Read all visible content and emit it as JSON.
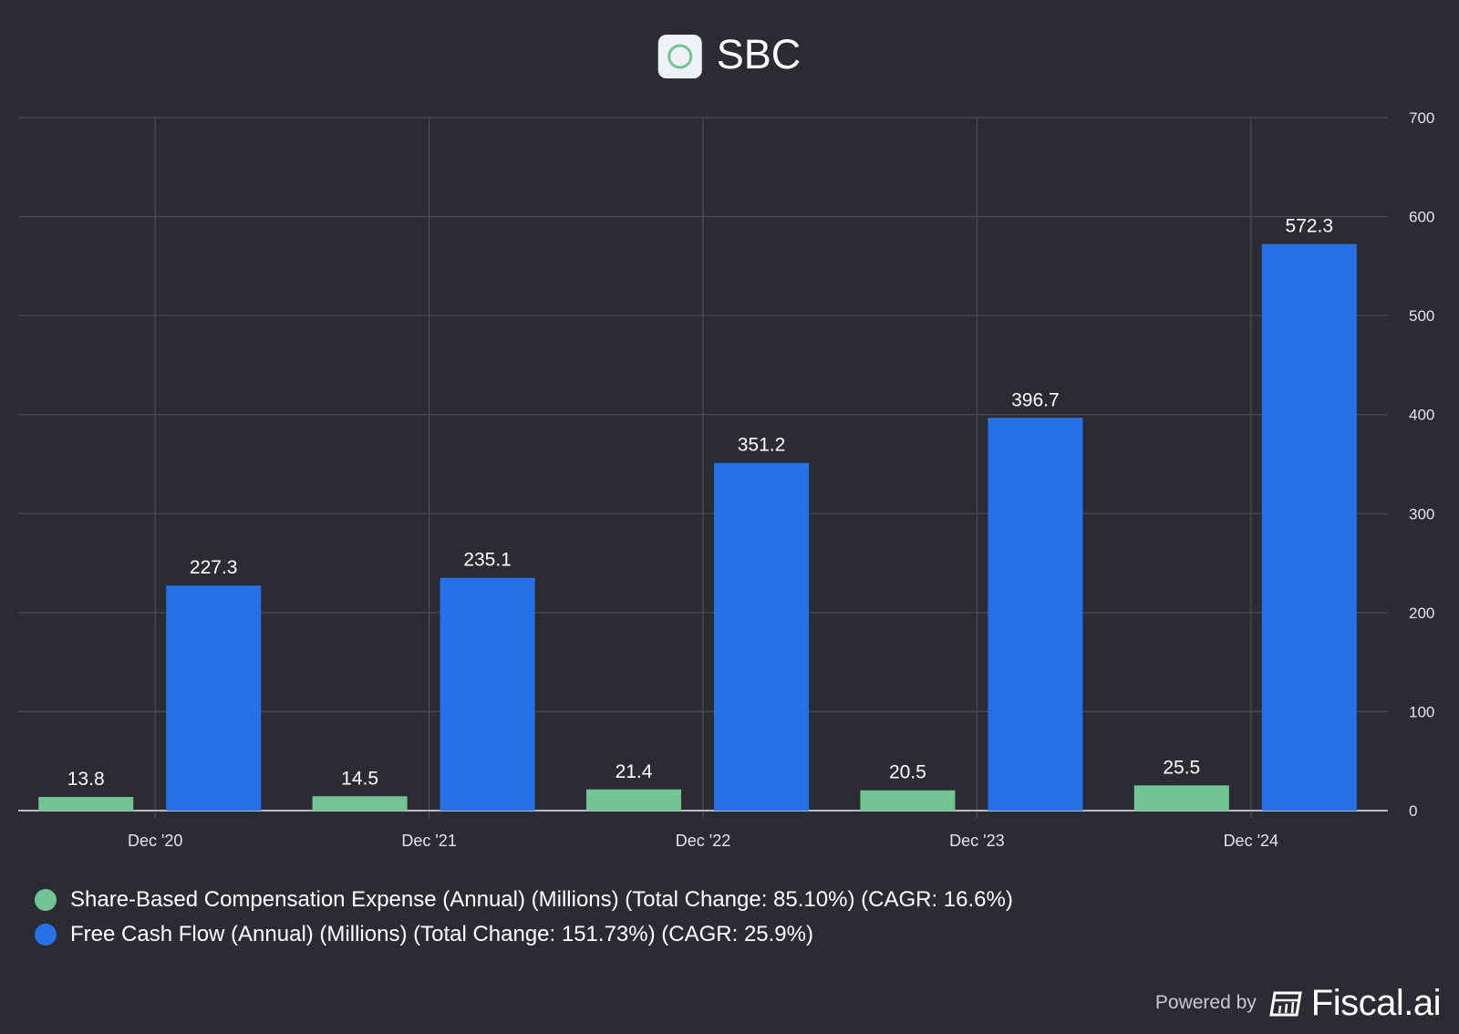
{
  "chart_data": {
    "type": "bar",
    "title": "SBC",
    "categories": [
      "Dec '20",
      "Dec '21",
      "Dec '22",
      "Dec '23",
      "Dec '24"
    ],
    "series": [
      {
        "name": "Share-Based Compensation Expense (Annual) (Millions) (Total Change: 85.10%) (CAGR: 16.6%)",
        "color": "#72c493",
        "values": [
          13.8,
          14.5,
          21.4,
          20.5,
          25.5
        ],
        "labels": [
          "13.8",
          "14.5",
          "21.4",
          "20.5",
          "25.5"
        ]
      },
      {
        "name": "Free Cash Flow (Annual) (Millions) (Total Change: 151.73%) (CAGR: 25.9%)",
        "color": "#2671e8",
        "values": [
          227.3,
          235.1,
          351.2,
          396.7,
          572.3
        ],
        "labels": [
          "227.3",
          "235.1",
          "351.2",
          "396.7",
          "572.3"
        ]
      }
    ],
    "ylim": [
      0,
      700
    ],
    "yticks": [
      "0",
      "100",
      "200",
      "300",
      "400",
      "500",
      "600",
      "700"
    ],
    "yaxis_position": "right",
    "grid": true,
    "legend_position": "bottom-left"
  },
  "footer": {
    "powered_by": "Powered by",
    "brand": "Fiscal.ai"
  },
  "icons": {
    "title_logo": "circle-logo-icon",
    "brand_logo": "fiscal-logo-icon"
  }
}
